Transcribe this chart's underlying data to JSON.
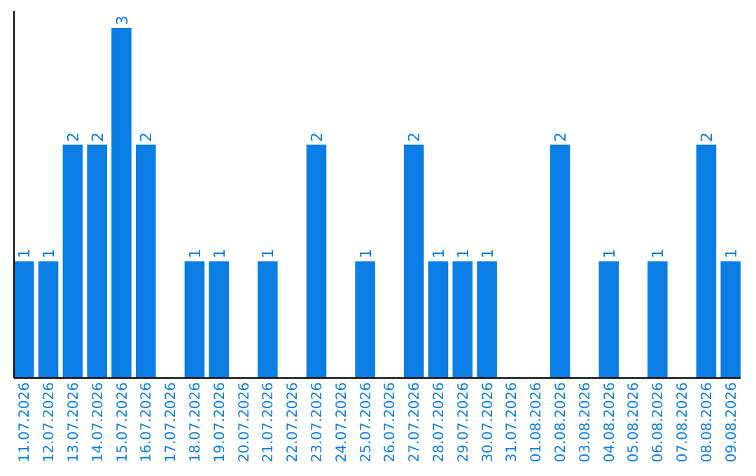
{
  "chart_data": {
    "type": "bar",
    "categories": [
      "11.07.2026",
      "12.07.2026",
      "13.07.2026",
      "14.07.2026",
      "15.07.2026",
      "16.07.2026",
      "17.07.2026",
      "18.07.2026",
      "19.07.2026",
      "20.07.2026",
      "21.07.2026",
      "22.07.2026",
      "23.07.2026",
      "24.07.2026",
      "25.07.2026",
      "26.07.2026",
      "27.07.2026",
      "28.07.2026",
      "29.07.2026",
      "30.07.2026",
      "31.07.2026",
      "01.08.2026",
      "02.08.2026",
      "03.08.2026",
      "04.08.2026",
      "05.08.2026",
      "06.08.2026",
      "07.08.2026",
      "08.08.2026",
      "09.08.2026"
    ],
    "values": [
      1,
      1,
      2,
      2,
      3,
      2,
      0,
      1,
      1,
      0,
      1,
      0,
      2,
      0,
      1,
      0,
      2,
      1,
      1,
      1,
      0,
      0,
      2,
      0,
      1,
      0,
      1,
      0,
      2,
      1
    ],
    "value_labels": [
      "1",
      "1",
      "2",
      "2",
      "3",
      "2",
      null,
      "1",
      "1",
      null,
      "1",
      null,
      "2",
      null,
      "1",
      null,
      "2",
      "1",
      "1",
      "1",
      null,
      null,
      "2",
      null,
      "1",
      null,
      "1",
      null,
      "2",
      "1"
    ],
    "color": "#0a7ee4"
  }
}
